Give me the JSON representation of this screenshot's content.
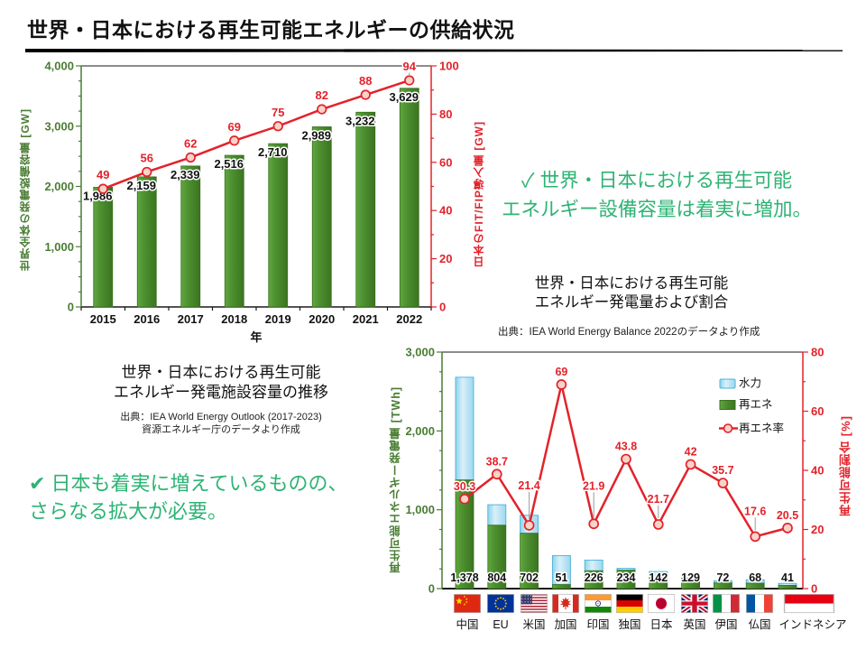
{
  "slide": {
    "title": "世界・日本における再生可能エネルギーの供給状況",
    "accent_green": "#2db374",
    "bar_green": "#4e9131",
    "hydro_blue": "#aadcf2",
    "line_red": "#e3222b"
  },
  "callout_capacity": {
    "line1": "✓ 世界・日本における再生可能",
    "line2": "エネルギー設備容量は着実に増加。"
  },
  "callout_japan": {
    "line1": "✔ 日本も着実に増えているものの、",
    "line2": "さらなる拡大が必要。"
  },
  "chart1_text": {
    "caption_line1": "世界・日本における再生可能",
    "caption_line2": "エネルギー発電施設容量の推移",
    "source_line1": "出典：IEA World Energy Outlook (2017-2023)",
    "source_line2": "資源エネルギー庁のデータより作成"
  },
  "chart2_text": {
    "title_line1": "世界・日本における再生可能",
    "title_line2": "エネルギー発電量および割合",
    "source": "出典：IEA World Energy Balance 2022のデータより作成"
  },
  "chart_data": [
    {
      "type": "bar",
      "title": "世界・日本における再生可能エネルギー発電施設容量の推移",
      "categories": [
        "2015",
        "2016",
        "2017",
        "2018",
        "2019",
        "2020",
        "2021",
        "2022"
      ],
      "xlabel": "年",
      "ylabel_left": "世界全体の発電設備容量 [GW]",
      "ylabel_right": "日本のFIT/FIP導入量 [GW]",
      "ylim_left": [
        0,
        4000
      ],
      "ylim_right": [
        0,
        100
      ],
      "ytick_major_left": 1000,
      "ytick_minor_left": 250,
      "ytick_major_right": 20,
      "ytick_minor_right": 10,
      "grid": false,
      "series": [
        {
          "name": "世界全体の発電設備容量 [GW]",
          "type": "bar",
          "axis": "left",
          "values": [
            1986,
            2159,
            2339,
            2516,
            2710,
            2989,
            3232,
            3629
          ],
          "labels": [
            "1,986",
            "2,159",
            "2,339",
            "2,516",
            "2,710",
            "2,989",
            "3,232",
            "3,629"
          ]
        },
        {
          "name": "日本のFIT/FIP導入量 [GW]",
          "type": "line",
          "axis": "right",
          "values": [
            49,
            56,
            62,
            69,
            75,
            82,
            88,
            94
          ],
          "labels": [
            "49",
            "56",
            "62",
            "69",
            "75",
            "82",
            "88",
            "94"
          ]
        }
      ],
      "source": "出典：IEA World Energy Outlook (2017-2023) 資源エネルギー庁のデータより作成"
    },
    {
      "type": "bar",
      "stacked": true,
      "title": "世界・日本における再生可能エネルギー発電量および割合",
      "categories": [
        "中国",
        "EU",
        "米国",
        "加国",
        "印国",
        "独国",
        "日本",
        "英国",
        "伊国",
        "仏国",
        "インドネシア"
      ],
      "flags": [
        "china",
        "eu",
        "usa",
        "canada",
        "india",
        "germany",
        "japan",
        "uk",
        "italy",
        "france",
        "indonesia"
      ],
      "ylabel_left": "再生可能エネルギー発電量 [TWh]",
      "ylabel_right": "再生可能割合 [%]",
      "ylim_left": [
        0,
        3000
      ],
      "ylim_right": [
        0,
        80
      ],
      "ytick_major_left": 1000,
      "ytick_minor_left": 250,
      "ytick_major_right": 20,
      "ytick_minor_right": 10,
      "grid": false,
      "legend_position": "upper-right-inside",
      "series": [
        {
          "name": "再エネ",
          "type": "bar",
          "stack_order": 0,
          "axis": "left",
          "values": [
            1378,
            804,
            702,
            51,
            226,
            234,
            142,
            129,
            72,
            68,
            41
          ],
          "labels": [
            "1,378",
            "804",
            "702",
            "51",
            "226",
            "234",
            "142",
            "129",
            "72",
            "68",
            "41"
          ]
        },
        {
          "name": "水力",
          "type": "bar",
          "stack_order": 1,
          "axis": "left",
          "values": [
            1303,
            260,
            228,
            368,
            136,
            23,
            75,
            5,
            28,
            45,
            25
          ]
        },
        {
          "name": "再エネ率",
          "type": "line",
          "axis": "right",
          "values": [
            30.3,
            38.7,
            21.4,
            69,
            21.9,
            43.8,
            21.7,
            42,
            35.7,
            17.6,
            20.5
          ],
          "labels": [
            "30.3",
            "38.7",
            "21.4",
            "69",
            "21.9",
            "43.8",
            "21.7",
            "42",
            "35.7",
            "17.6",
            "20.5"
          ]
        }
      ],
      "source": "出典：IEA World Energy Balance 2022のデータより作成"
    }
  ]
}
